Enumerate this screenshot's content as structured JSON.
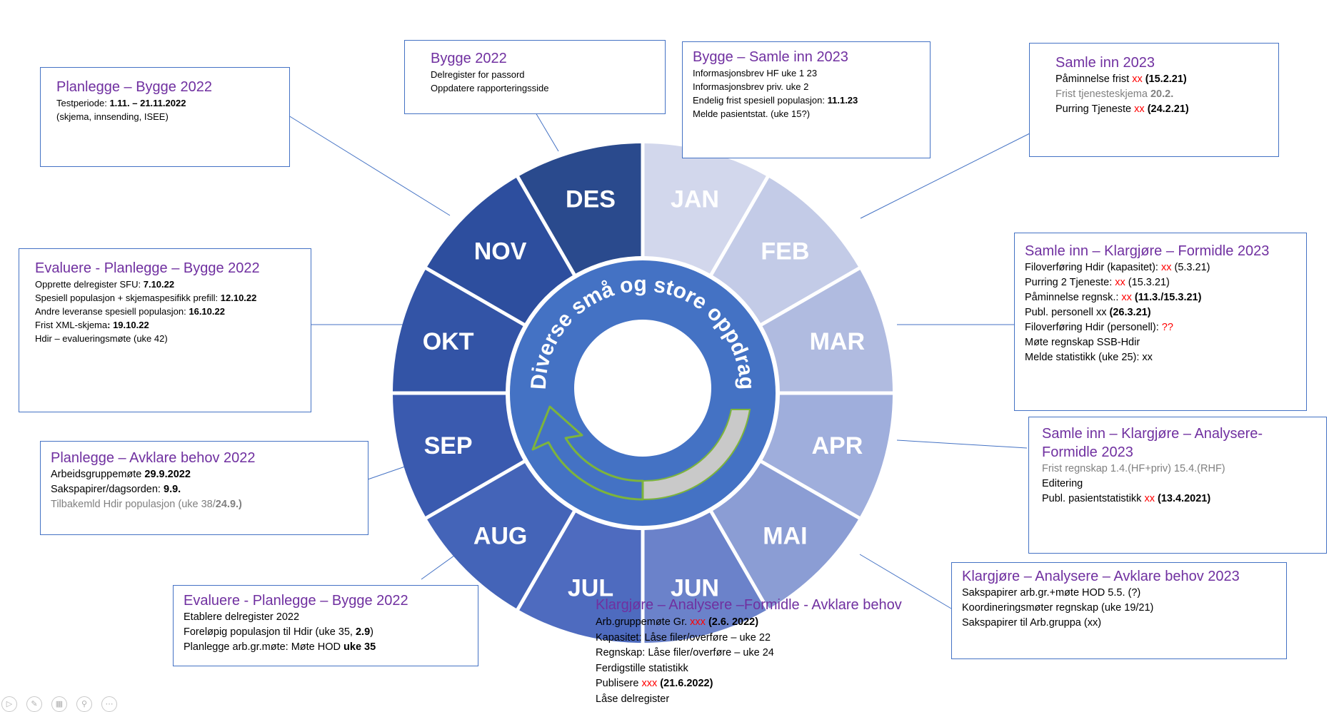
{
  "wheel": {
    "months": [
      {
        "label": "JAN",
        "color": "#d2d7ec"
      },
      {
        "label": "FEB",
        "color": "#c3cbe7"
      },
      {
        "label": "MAR",
        "color": "#b0bbe0"
      },
      {
        "label": "APR",
        "color": "#9faedc"
      },
      {
        "label": "MAI",
        "color": "#8b9dd4"
      },
      {
        "label": "JUN",
        "color": "#6b82ca"
      },
      {
        "label": "JUL",
        "color": "#4e6bbf"
      },
      {
        "label": "AUG",
        "color": "#4464b8"
      },
      {
        "label": "SEP",
        "color": "#3a5aaf"
      },
      {
        "label": "OKT",
        "color": "#3354a6"
      },
      {
        "label": "NOV",
        "color": "#2d4e9e"
      },
      {
        "label": "DES",
        "color": "#2a4a8d"
      }
    ],
    "center_text": "Diverse små og store oppdrag",
    "inner_ring_color": "#4472c4"
  },
  "boxes": {
    "planlegge_bygge": {
      "title": "Planlegge – Bygge 2022",
      "l1_a": "Testperiode: ",
      "l1_b": "1.11. – 21.11.2022",
      "l2": "(skjema, innsending, ISEE)"
    },
    "bygge": {
      "title": "Bygge 2022",
      "l1": "Delregister for passord",
      "l2": "Oppdatere rapporteringsside"
    },
    "bygge_samle": {
      "title": "Bygge – Samle inn 2023",
      "l1": "Informasjonsbrev HF uke 1 23",
      "l2": "Informasjonsbrev priv. uke 2",
      "l3_a": "Endelig frist spesiell populasjon: ",
      "l3_b": "11.1.23",
      "l4": "Melde pasientstat. (uke 15?)"
    },
    "samle_inn": {
      "title": "Samle inn 2023",
      "l1_a": "Påminnelse frist ",
      "l1_red": "xx",
      "l1_b": "(15.2.21)",
      "l2_a": "Frist tjenesteskjema ",
      "l2_b": "20.2.",
      "l3_a": "Purring Tjeneste ",
      "l3_red": "xx",
      "l3_b": "(24.2.21)"
    },
    "evaluere_okt": {
      "title": "Evaluere - Planlegge – Bygge 2022",
      "l1_a": "Opprette delregister SFU: ",
      "l1_b": "7.10.22",
      "l2_a": "Spesiell populasjon + skjemaspesifikk prefill: ",
      "l2_b": "12.10.22",
      "l3_a": "Andre leveranse spesiell populasjon:  ",
      "l3_b": "16.10.22",
      "l4_a": "Frist XML-skjema",
      "l4_b": ": 19.10.22",
      "l5": "Hdir – evalueringsmøte (uke 42)"
    },
    "samle_klar_formidle": {
      "title": "Samle inn – Klargjøre – Formidle 2023",
      "l1_a": "Filoverføring Hdir (kapasitet): ",
      "l1_red": "xx",
      "l1_b": " (5.3.21)",
      "l2_a": "Purring 2 Tjeneste: ",
      "l2_red": "xx",
      "l2_b": " (15.3.21)",
      "l3_a": "Påminnelse regnsk.: ",
      "l3_red": "xx",
      "l3_b": " (11.3./15.3.21)",
      "l4_a": "Publ. personell  xx ",
      "l4_b": "(26.3.21)",
      "l5_a": "Filoverføring Hdir (personell): ",
      "l5_red": "??",
      "l6": "Møte regnskap SSB-Hdir",
      "l7": "Melde statistikk (uke 25): xx"
    },
    "samle_analysere": {
      "title1": "Samle inn – Klargjøre – Analysere-",
      "title2": "Formidle 2023",
      "l1": "Frist regnskap 1.4.(HF+priv) 15.4.(RHF)",
      "l2": "Editering",
      "l3_a": "Publ. pasientstatistikk ",
      "l3_red": "xx",
      "l3_b": " (13.4.2021)"
    },
    "avklare_behov": {
      "title": "Planlegge – Avklare behov 2022",
      "l1_a": "Arbeidsgruppemøte ",
      "l1_b": "29.9.2022",
      "l2_a": "Sakspapirer/dagsorden: ",
      "l2_b": "9.9.",
      "l3_a": "Tilbakemld Hdir populasjon (uke 38/",
      "l3_b": "24.9.)"
    },
    "evaluere_aug": {
      "title": "Evaluere - Planlegge – Bygge 2022",
      "l1": "Etablere delregister 2022",
      "l2_a": "Foreløpig populasjon til Hdir (uke 35, ",
      "l2_b": "2.9",
      "l2_c": ")",
      "l3_a": "Planlegge arb.gr.møte: Møte HOD ",
      "l3_b": "uke 35"
    },
    "klargjore_2023": {
      "title": "Klargjøre – Analysere – Avklare behov 2023",
      "l1": "Sakspapirer arb.gr.+møte HOD 5.5. (?)",
      "l2": "Koordineringsmøter regnskap (uke 19/21)",
      "l3": "Sakspapirer til Arb.gruppa (xx)"
    },
    "klargjore_jun": {
      "title": "Klargjøre – Analysere –Formidle - Avklare behov",
      "l1_a": "Arb.gruppemøte  Gr. ",
      "l1_red": "xxx",
      "l1_b": " (2.6. 2022)",
      "l2": "Kapasitet: Låse filer/overføre – uke 22",
      "l3": "Regnskap: Låse filer/overføre – uke 24",
      "l4": "Ferdigstille statistikk",
      "l5_a": "Publisere ",
      "l5_red": "xxx",
      "l5_b": " (21.6.2022)",
      "l6": "Låse delregister"
    }
  }
}
